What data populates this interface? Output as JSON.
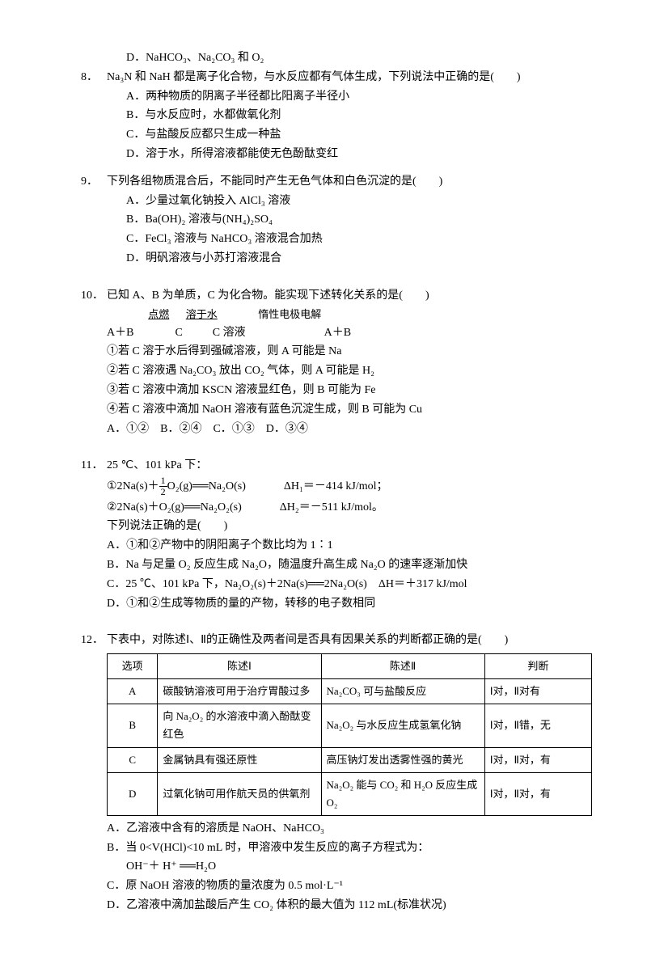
{
  "q7d": {
    "label": "D．",
    "text": "NaHCO₃、Na₂CO₃ 和 O₂"
  },
  "q8": {
    "num": "8．",
    "stem": "Na₃N 和 NaH 都是离子化合物，与水反应都有气体生成，下列说法中正确的是(　　)",
    "opts": [
      {
        "l": "A．",
        "t": "两种物质的阴离子半径都比阳离子半径小"
      },
      {
        "l": "B．",
        "t": "与水反应时，水都做氧化剂"
      },
      {
        "l": "C．",
        "t": "与盐酸反应都只生成一种盐"
      },
      {
        "l": "D．",
        "t": "溶于水，所得溶液都能使无色酚酞变红"
      }
    ]
  },
  "q9": {
    "num": "9．",
    "stem": "下列各组物质混合后，不能同时产生无色气体和白色沉淀的是(　　)",
    "opts": [
      {
        "l": "A．",
        "t": "少量过氧化钠投入 AlCl₃ 溶液"
      },
      {
        "l": "B．",
        "t": "Ba(OH)₂ 溶液与(NH₄)₂SO₄"
      },
      {
        "l": "C．",
        "t": "FeCl₃ 溶液与 NaHCO₃ 溶液混合加热"
      },
      {
        "l": "D．",
        "t": "明矾溶液与小苏打溶液混合"
      }
    ]
  },
  "q10": {
    "num": "10．",
    "stem": "已知 A、B 为单质，C 为化合物。能实现下述转化关系的是(　　)",
    "reaction_labels": {
      "a1": "点燃",
      "a2": "溶于水",
      "a3": "惰性电极电解"
    },
    "reaction": {
      "left": "A＋B",
      "mid1": "C",
      "mid2": "C 溶液",
      "right": "A＋B"
    },
    "subs": [
      "①若 C 溶于水后得到强碱溶液，则 A 可能是 Na",
      "②若 C 溶液遇 Na₂CO₃ 放出 CO₂ 气体，则 A 可能是 H₂",
      "③若 C 溶液中滴加 KSCN 溶液显红色，则 B 可能为 Fe",
      "④若 C 溶液中滴加 NaOH 溶液有蓝色沉淀生成，则 B 可能为 Cu"
    ],
    "choices": "A．①②　B．②④　C．①③　D．③④"
  },
  "q11": {
    "num": "11．",
    "stem": "25 ℃、101 kPa 下：",
    "eq1": {
      "l": "①2Na(s)＋",
      "frac_n": "1",
      "frac_d": "2",
      "m": "O₂(g)══Na₂O(s)",
      "r": "ΔH₁＝－414 kJ/mol；"
    },
    "eq2": {
      "l": "②2Na(s)＋O₂(g)══Na₂O₂(s)",
      "r": "ΔH₂＝－511 kJ/mol。"
    },
    "stem2": "下列说法正确的是(　　)",
    "opts": [
      {
        "l": "A．",
        "t": "①和②产物中的阴阳离子个数比均为 1∶1"
      },
      {
        "l": "B．",
        "t": "Na 与足量 O₂ 反应生成 Na₂O，随温度升高生成 Na₂O 的速率逐渐加快"
      },
      {
        "l": "C．",
        "t": "25 ℃、101 kPa 下，Na₂O₂(s)＋2Na(s)══2Na₂O(s)　ΔH＝＋317 kJ/mol"
      },
      {
        "l": "D．",
        "t": "①和②生成等物质的量的产物，转移的电子数相同"
      }
    ]
  },
  "q12": {
    "num": "12．",
    "stem": "下表中，对陈述Ⅰ、Ⅱ的正确性及两者间是否具有因果关系的判断都正确的是(　　)",
    "headers": [
      "选项",
      "陈述Ⅰ",
      "陈述Ⅱ",
      "判断"
    ],
    "rows": [
      {
        "o": "A",
        "s1": "碳酸钠溶液可用于治疗胃酸过多",
        "s2": "Na₂CO₃ 可与盐酸反应",
        "j": "Ⅰ对，Ⅱ对有"
      },
      {
        "o": "B",
        "s1": "向 Na₂O₂ 的水溶液中滴入酚酞变红色",
        "s2": "Na₂O₂ 与水反应生成氢氧化钠",
        "j": "Ⅰ对，Ⅱ错，无"
      },
      {
        "o": "C",
        "s1": "金属钠具有强还原性",
        "s2": "高压钠灯发出透雾性强的黄光",
        "j": "Ⅰ对，Ⅱ对，有"
      },
      {
        "o": "D",
        "s1": "过氧化钠可用作航天员的供氧剂",
        "s2": "Na₂O₂ 能与 CO₂ 和 H₂O 反应生成 O₂",
        "j": "Ⅰ对，Ⅱ对，有"
      }
    ],
    "after": [
      {
        "l": "A．",
        "t": "乙溶液中含有的溶质是 NaOH、NaHCO₃"
      },
      {
        "l": "B．",
        "t": "当 0<V(HCl)<10 mL 时，甲溶液中发生反应的离子方程式为："
      },
      {
        "l": "",
        "t": "OH⁻＋ H⁺ ══H₂O"
      },
      {
        "l": "C．",
        "t": "原 NaOH 溶液的物质的量浓度为 0.5 mol·L⁻¹"
      },
      {
        "l": "D．",
        "t": "乙溶液中滴加盐酸后产生 CO₂ 体积的最大值为 112 mL(标准状况)"
      }
    ]
  }
}
